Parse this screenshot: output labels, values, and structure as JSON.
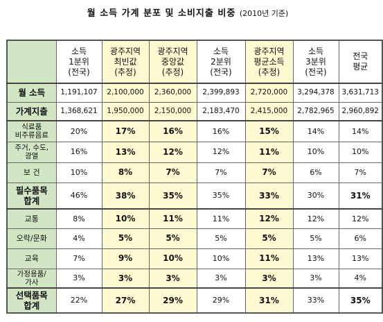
{
  "title": "월 소득 가계 분포 및 소비지출 비중",
  "title_year": "(2010년 기준)",
  "columns": [
    {
      "l1": "소득",
      "l2": "1분위",
      "l3": "(전국)"
    },
    {
      "l1": "광주지역",
      "l2": "최빈값",
      "l3": "(추정)"
    },
    {
      "l1": "광주지역",
      "l2": "중앙값",
      "l3": "(추정)"
    },
    {
      "l1": "소득",
      "l2": "2분위",
      "l3": "(전국)"
    },
    {
      "l1": "광주지역",
      "l2": "평균소득",
      "l3": "(추정)"
    },
    {
      "l1": "소득",
      "l2": "3분위",
      "l3": "(전국)"
    },
    {
      "l1": "전국",
      "l2": "평균",
      "l3": ""
    }
  ],
  "rows": [
    {
      "label": [
        "월 소득"
      ],
      "values": [
        "1,191,107",
        "2,100,000",
        "2,360,000",
        "2,399,893",
        "2,720,000",
        "3,294,378",
        "3,631,713"
      ]
    },
    {
      "label": [
        "가계지출"
      ],
      "values": [
        "1,368,621",
        "1,950,000",
        "2,150,000",
        "2,183,470",
        "2,415,000",
        "2,782,965",
        "2,960,892"
      ]
    },
    {
      "label": [
        "식료품",
        "비주류음료"
      ],
      "values": [
        "20%",
        "17%",
        "16%",
        "16%",
        "15%",
        "14%",
        "14%"
      ]
    },
    {
      "label": [
        "주거, 수도,",
        "광열"
      ],
      "values": [
        "16%",
        "13%",
        "12%",
        "12%",
        "11%",
        "10%",
        "10%"
      ]
    },
    {
      "label": [
        "보 건"
      ],
      "values": [
        "10%",
        "8%",
        "7%",
        "7%",
        "7%",
        "6%",
        "7%"
      ]
    },
    {
      "label": [
        "필수품목",
        "합계"
      ],
      "values": [
        "46%",
        "38%",
        "35%",
        "35%",
        "33%",
        "30%",
        "31%"
      ]
    },
    {
      "label": [
        "교통"
      ],
      "values": [
        "8%",
        "10%",
        "11%",
        "11%",
        "12%",
        "12%",
        "12%"
      ]
    },
    {
      "label": [
        "오락/문화"
      ],
      "values": [
        "4%",
        "5%",
        "5%",
        "5%",
        "5%",
        "5%",
        "6%"
      ]
    },
    {
      "label": [
        "교육"
      ],
      "values": [
        "7%",
        "9%",
        "10%",
        "10%",
        "11%",
        "13%",
        "13%"
      ]
    },
    {
      "label": [
        "가정용품/",
        "가사"
      ],
      "values": [
        "3%",
        "3%",
        "3%",
        "3%",
        "3%",
        "3%",
        "4%"
      ]
    },
    {
      "label": [
        "선택품목",
        "합계"
      ],
      "values": [
        "22%",
        "27%",
        "29%",
        "29%",
        "31%",
        "33%",
        "35%"
      ]
    }
  ]
}
